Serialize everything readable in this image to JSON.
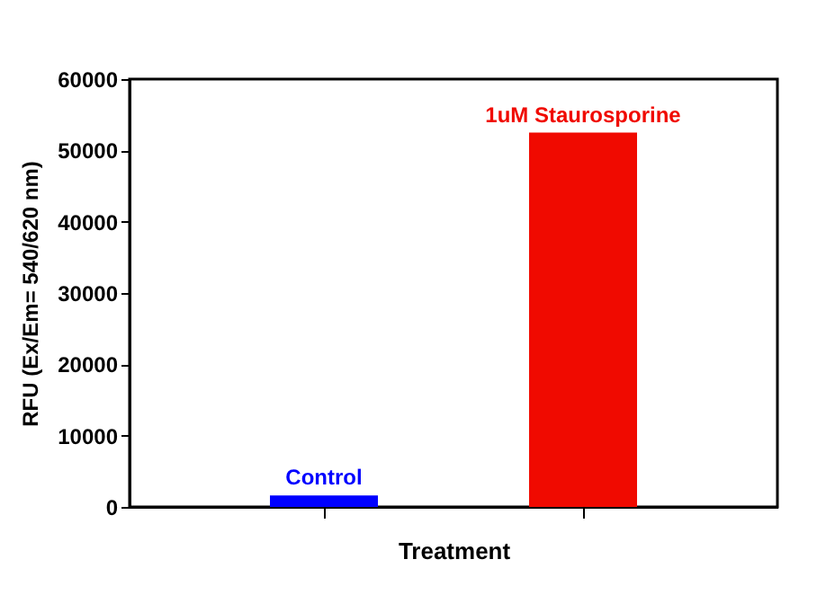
{
  "chart_data": {
    "type": "bar",
    "xlabel": "Treatment",
    "ylabel": "RFU (Ex/Em= 540/620 nm)",
    "categories": [
      "Control",
      "1uM Staurosporine"
    ],
    "values": [
      1600,
      52500
    ],
    "colors": [
      "#0000ff",
      "#f00a00"
    ],
    "ylim": [
      0,
      60000
    ],
    "yticks": [
      0,
      10000,
      20000,
      30000,
      40000,
      50000,
      60000
    ],
    "tick_labels": "y",
    "grid": false
  }
}
